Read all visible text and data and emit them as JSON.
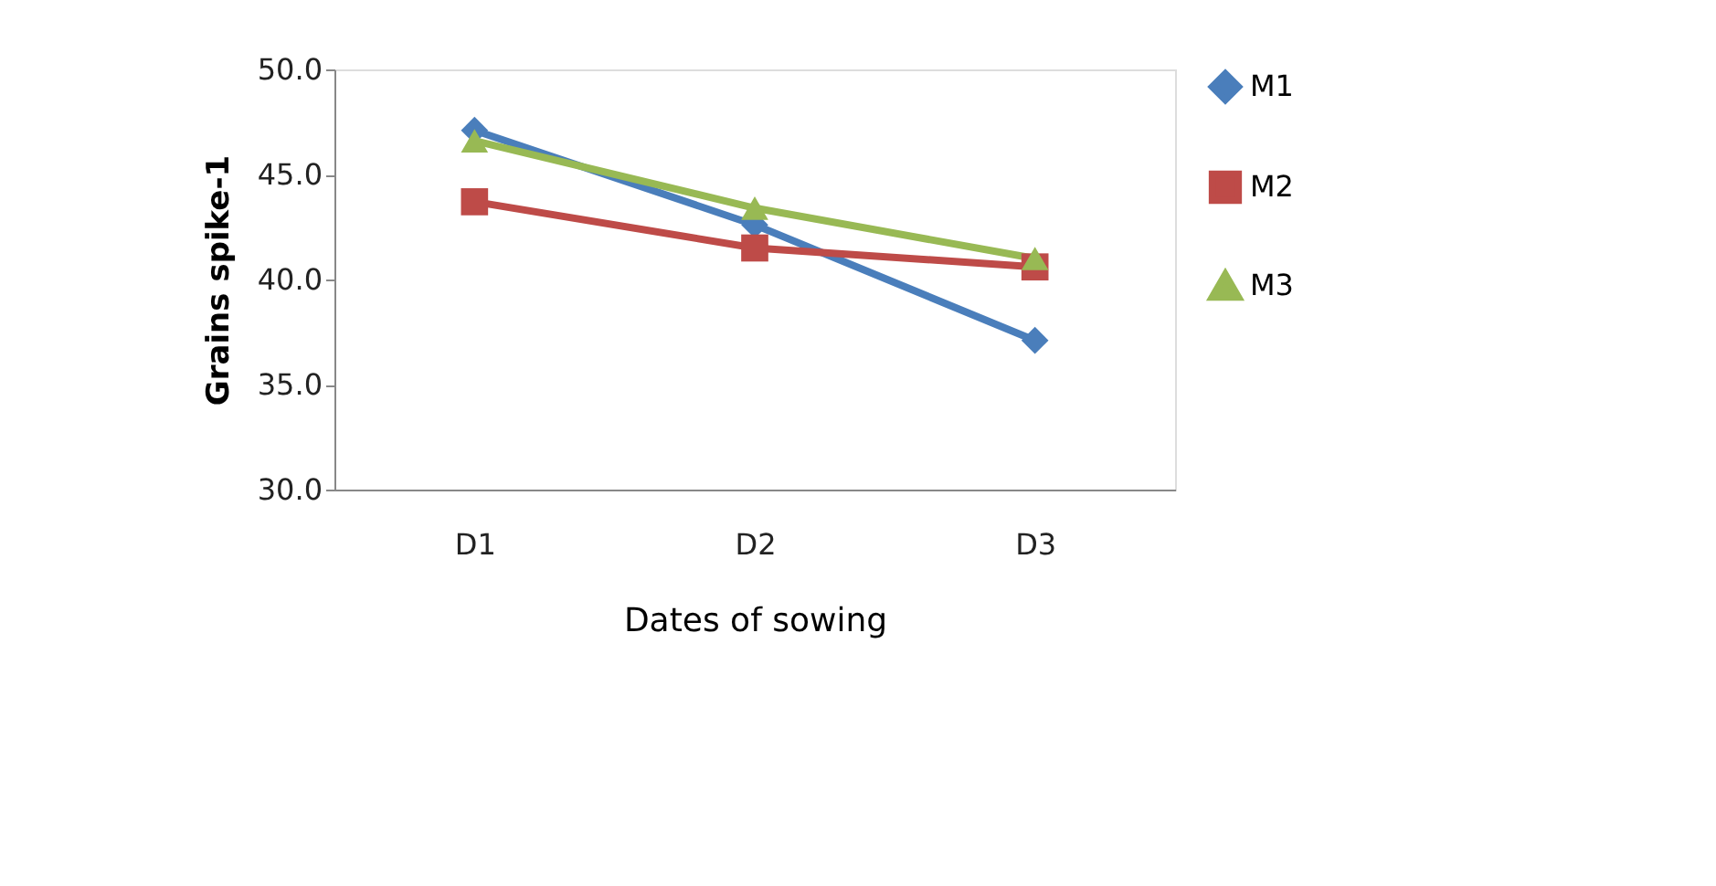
{
  "chart_data": {
    "type": "line",
    "xlabel": "Dates of sowing",
    "ylabel": "Grains spike-1",
    "categories": [
      "D1",
      "D2",
      "D3"
    ],
    "series": [
      {
        "name": "M1",
        "color": "#4a7ebb",
        "values": [
          47.1,
          42.6,
          37.1
        ],
        "marker": "diamond"
      },
      {
        "name": "M2",
        "color": "#be4b48",
        "values": [
          43.7,
          41.5,
          40.6
        ],
        "marker": "square"
      },
      {
        "name": "M3",
        "color": "#98b954",
        "values": [
          46.6,
          43.4,
          41.0
        ],
        "marker": "triangle"
      }
    ],
    "ylim": [
      30,
      50
    ],
    "yticks": [
      {
        "value": 30,
        "label": "30.0"
      },
      {
        "value": 35,
        "label": "35.0"
      },
      {
        "value": 40,
        "label": "40.0"
      },
      {
        "value": 45,
        "label": "45.0"
      },
      {
        "value": 50,
        "label": "50.0"
      }
    ],
    "grid": false,
    "legend": "right",
    "line_style": "solid"
  }
}
